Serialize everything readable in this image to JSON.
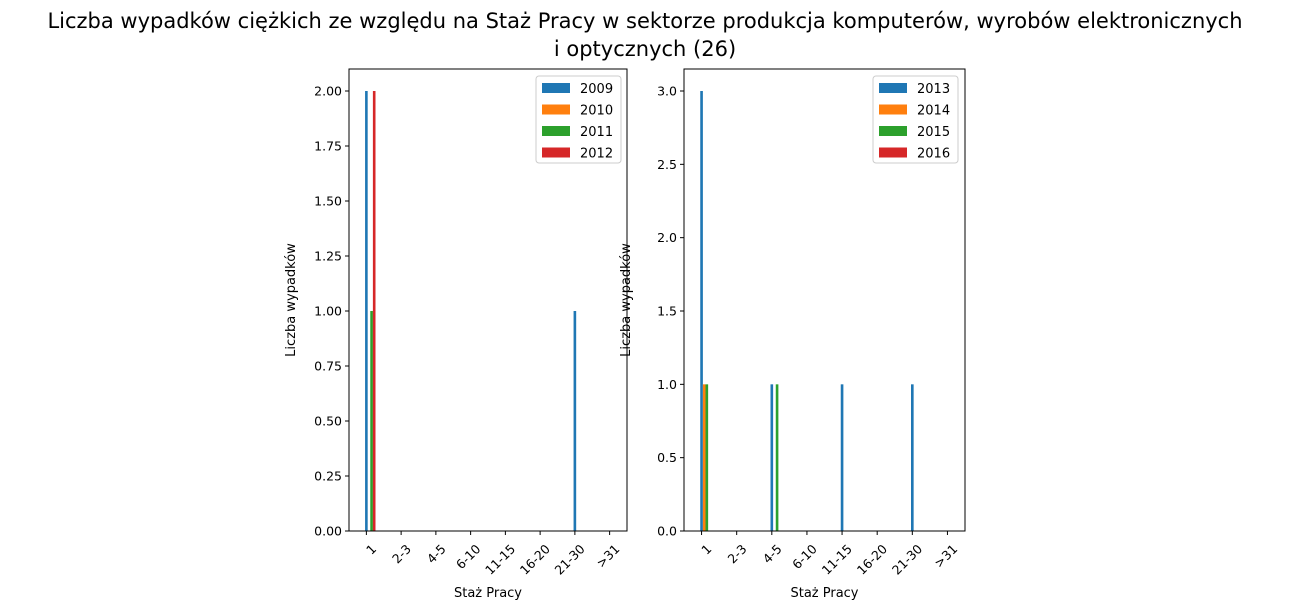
{
  "title_line1": "Liczba wypadków ciężkich ze względu na Staż Pracy w sektorze produkcja komputerów, wyrobów elektronicznych",
  "title_line2": "i optycznych (26)",
  "colors": [
    "#1f77b4",
    "#ff7f0e",
    "#2ca02c",
    "#d62728"
  ],
  "chart_data": [
    {
      "type": "bar",
      "categories": [
        "1",
        "2-3",
        "4-5",
        "6-10",
        "11-15",
        "16-20",
        "21-30",
        ">31"
      ],
      "xlabel": "Staż Pracy",
      "ylabel": "Liczba wypadków",
      "ylim": [
        0,
        2.1
      ],
      "yticks": [
        "0.00",
        "0.25",
        "0.50",
        "0.75",
        "1.00",
        "1.25",
        "1.50",
        "1.75",
        "2.00"
      ],
      "ytick_values": [
        0,
        0.25,
        0.5,
        0.75,
        1.0,
        1.25,
        1.5,
        1.75,
        2.0
      ],
      "legend_position": "top-right",
      "series": [
        {
          "name": "2009",
          "values": [
            2,
            0,
            0,
            0,
            0,
            0,
            1,
            0
          ]
        },
        {
          "name": "2010",
          "values": [
            0,
            0,
            0,
            0,
            0,
            0,
            0,
            0
          ]
        },
        {
          "name": "2011",
          "values": [
            1,
            0,
            0,
            0,
            0,
            0,
            0,
            0
          ]
        },
        {
          "name": "2012",
          "values": [
            2,
            0,
            0,
            0,
            0,
            0,
            0,
            0
          ]
        }
      ]
    },
    {
      "type": "bar",
      "categories": [
        "1",
        "2-3",
        "4-5",
        "6-10",
        "11-15",
        "16-20",
        "21-30",
        ">31"
      ],
      "xlabel": "Staż Pracy",
      "ylabel": "Liczba wypadków",
      "ylim": [
        0,
        3.15
      ],
      "yticks": [
        "0.0",
        "0.5",
        "1.0",
        "1.5",
        "2.0",
        "2.5",
        "3.0"
      ],
      "ytick_values": [
        0,
        0.5,
        1.0,
        1.5,
        2.0,
        2.5,
        3.0
      ],
      "legend_position": "top-right",
      "series": [
        {
          "name": "2013",
          "values": [
            3,
            0,
            1,
            0,
            1,
            0,
            1,
            0
          ]
        },
        {
          "name": "2014",
          "values": [
            1,
            0,
            0,
            0,
            0,
            0,
            0,
            0
          ]
        },
        {
          "name": "2015",
          "values": [
            1,
            0,
            1,
            0,
            0,
            0,
            0,
            0
          ]
        },
        {
          "name": "2016",
          "values": [
            0,
            0,
            0,
            0,
            0,
            0,
            0,
            0
          ]
        }
      ]
    }
  ]
}
